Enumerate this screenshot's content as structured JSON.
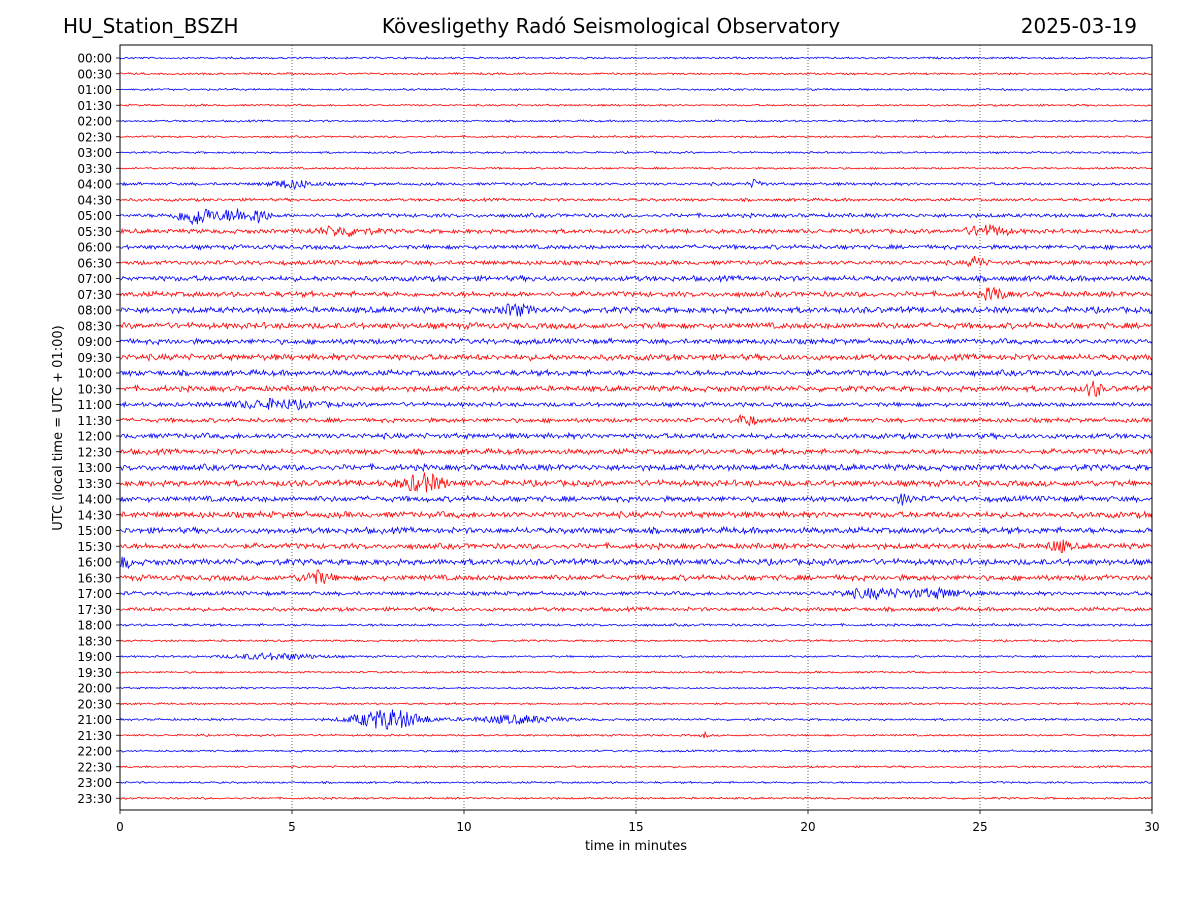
{
  "header": {
    "station": "HU_Station_BSZH",
    "observatory": "Kövesligethy Radó Seismological Observatory",
    "date": "2025-03-19"
  },
  "colors": {
    "odd_row": "#0000ff",
    "even_row": "#ff0000",
    "grid": "#000000"
  },
  "chart_data": {
    "type": "line",
    "subtype": "helicorder",
    "xlabel": "time in minutes",
    "ylabel": "UTC (local time = UTC + 01:00)",
    "xlim": [
      0,
      30
    ],
    "x_ticks": [
      0,
      5,
      10,
      15,
      20,
      25,
      30
    ],
    "row_labels": [
      "00:00",
      "00:30",
      "01:00",
      "01:30",
      "02:00",
      "02:30",
      "03:00",
      "03:30",
      "04:00",
      "04:30",
      "05:00",
      "05:30",
      "06:00",
      "06:30",
      "07:00",
      "07:30",
      "08:00",
      "08:30",
      "09:00",
      "09:30",
      "10:00",
      "10:30",
      "11:00",
      "11:30",
      "12:00",
      "12:30",
      "13:00",
      "13:30",
      "14:00",
      "14:30",
      "15:00",
      "15:30",
      "16:00",
      "16:30",
      "17:00",
      "17:30",
      "18:00",
      "18:30",
      "19:00",
      "19:30",
      "20:00",
      "20:30",
      "21:00",
      "21:30",
      "22:00",
      "22:30",
      "23:00",
      "23:30"
    ],
    "row_colors_cycle": [
      "#0000ff",
      "#ff0000"
    ],
    "vertical_grid": {
      "style": "dotted",
      "at": [
        5,
        10,
        15,
        20,
        25
      ]
    },
    "background_level": [
      0.8,
      0.8,
      0.8,
      0.8,
      0.8,
      0.8,
      0.8,
      0.8,
      1.2,
      1.2,
      1.6,
      1.8,
      1.8,
      1.8,
      2.2,
      2.2,
      2.5,
      2.5,
      2.2,
      2.5,
      2.3,
      2.3,
      1.8,
      1.8,
      2.2,
      2.2,
      2.5,
      2.5,
      2.3,
      2.5,
      2.5,
      2.3,
      2.5,
      2.3,
      1.6,
      1.6,
      1.0,
      0.8,
      0.8,
      0.8,
      0.8,
      0.8,
      0.9,
      0.8,
      0.8,
      0.8,
      0.8,
      0.8
    ],
    "events": [
      {
        "row": 8,
        "t": 5.0,
        "amp": 4,
        "dur": 0.6
      },
      {
        "row": 8,
        "t": 18.5,
        "amp": 4,
        "dur": 0.2
      },
      {
        "row": 10,
        "t": 2.2,
        "amp": 9,
        "dur": 0.5
      },
      {
        "row": 10,
        "t": 3.4,
        "amp": 6,
        "dur": 0.5
      },
      {
        "row": 10,
        "t": 4.1,
        "amp": 7,
        "dur": 0.2
      },
      {
        "row": 11,
        "t": 6.5,
        "amp": 4,
        "dur": 0.8
      },
      {
        "row": 11,
        "t": 25.2,
        "amp": 5,
        "dur": 0.6
      },
      {
        "row": 13,
        "t": 24.9,
        "amp": 6,
        "dur": 0.2
      },
      {
        "row": 15,
        "t": 25.4,
        "amp": 6,
        "dur": 0.3
      },
      {
        "row": 16,
        "t": 11.5,
        "amp": 5,
        "dur": 0.4
      },
      {
        "row": 21,
        "t": 28.3,
        "amp": 8,
        "dur": 0.2
      },
      {
        "row": 22,
        "t": 4.5,
        "amp": 4,
        "dur": 1.2
      },
      {
        "row": 23,
        "t": 18.2,
        "amp": 5,
        "dur": 0.3
      },
      {
        "row": 27,
        "t": 8.8,
        "amp": 8,
        "dur": 0.6
      },
      {
        "row": 28,
        "t": 22.8,
        "amp": 5,
        "dur": 0.2
      },
      {
        "row": 31,
        "t": 27.3,
        "amp": 5,
        "dur": 0.3
      },
      {
        "row": 32,
        "t": 0.1,
        "amp": 5,
        "dur": 0.2
      },
      {
        "row": 33,
        "t": 5.7,
        "amp": 6,
        "dur": 0.4
      },
      {
        "row": 34,
        "t": 21.9,
        "amp": 4,
        "dur": 1.0
      },
      {
        "row": 34,
        "t": 23.8,
        "amp": 4,
        "dur": 0.8
      },
      {
        "row": 38,
        "t": 4.5,
        "amp": 3,
        "dur": 1.3
      },
      {
        "row": 42,
        "t": 7.8,
        "amp": 10,
        "dur": 1.0
      },
      {
        "row": 42,
        "t": 11.5,
        "amp": 4,
        "dur": 1.2
      },
      {
        "row": 43,
        "t": 17.0,
        "amp": 3,
        "dur": 0.1
      }
    ]
  }
}
